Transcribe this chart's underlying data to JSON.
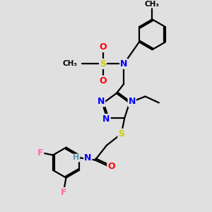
{
  "background_color": "#e0e0e0",
  "atom_colors": {
    "N": "#0000ff",
    "O": "#ff0000",
    "S": "#cccc00",
    "F": "#ff69b4",
    "C": "#000000",
    "H": "#5599aa"
  },
  "bond_color": "#000000",
  "bond_width": 1.6,
  "fig_width": 3.0,
  "fig_height": 3.0,
  "dpi": 100
}
